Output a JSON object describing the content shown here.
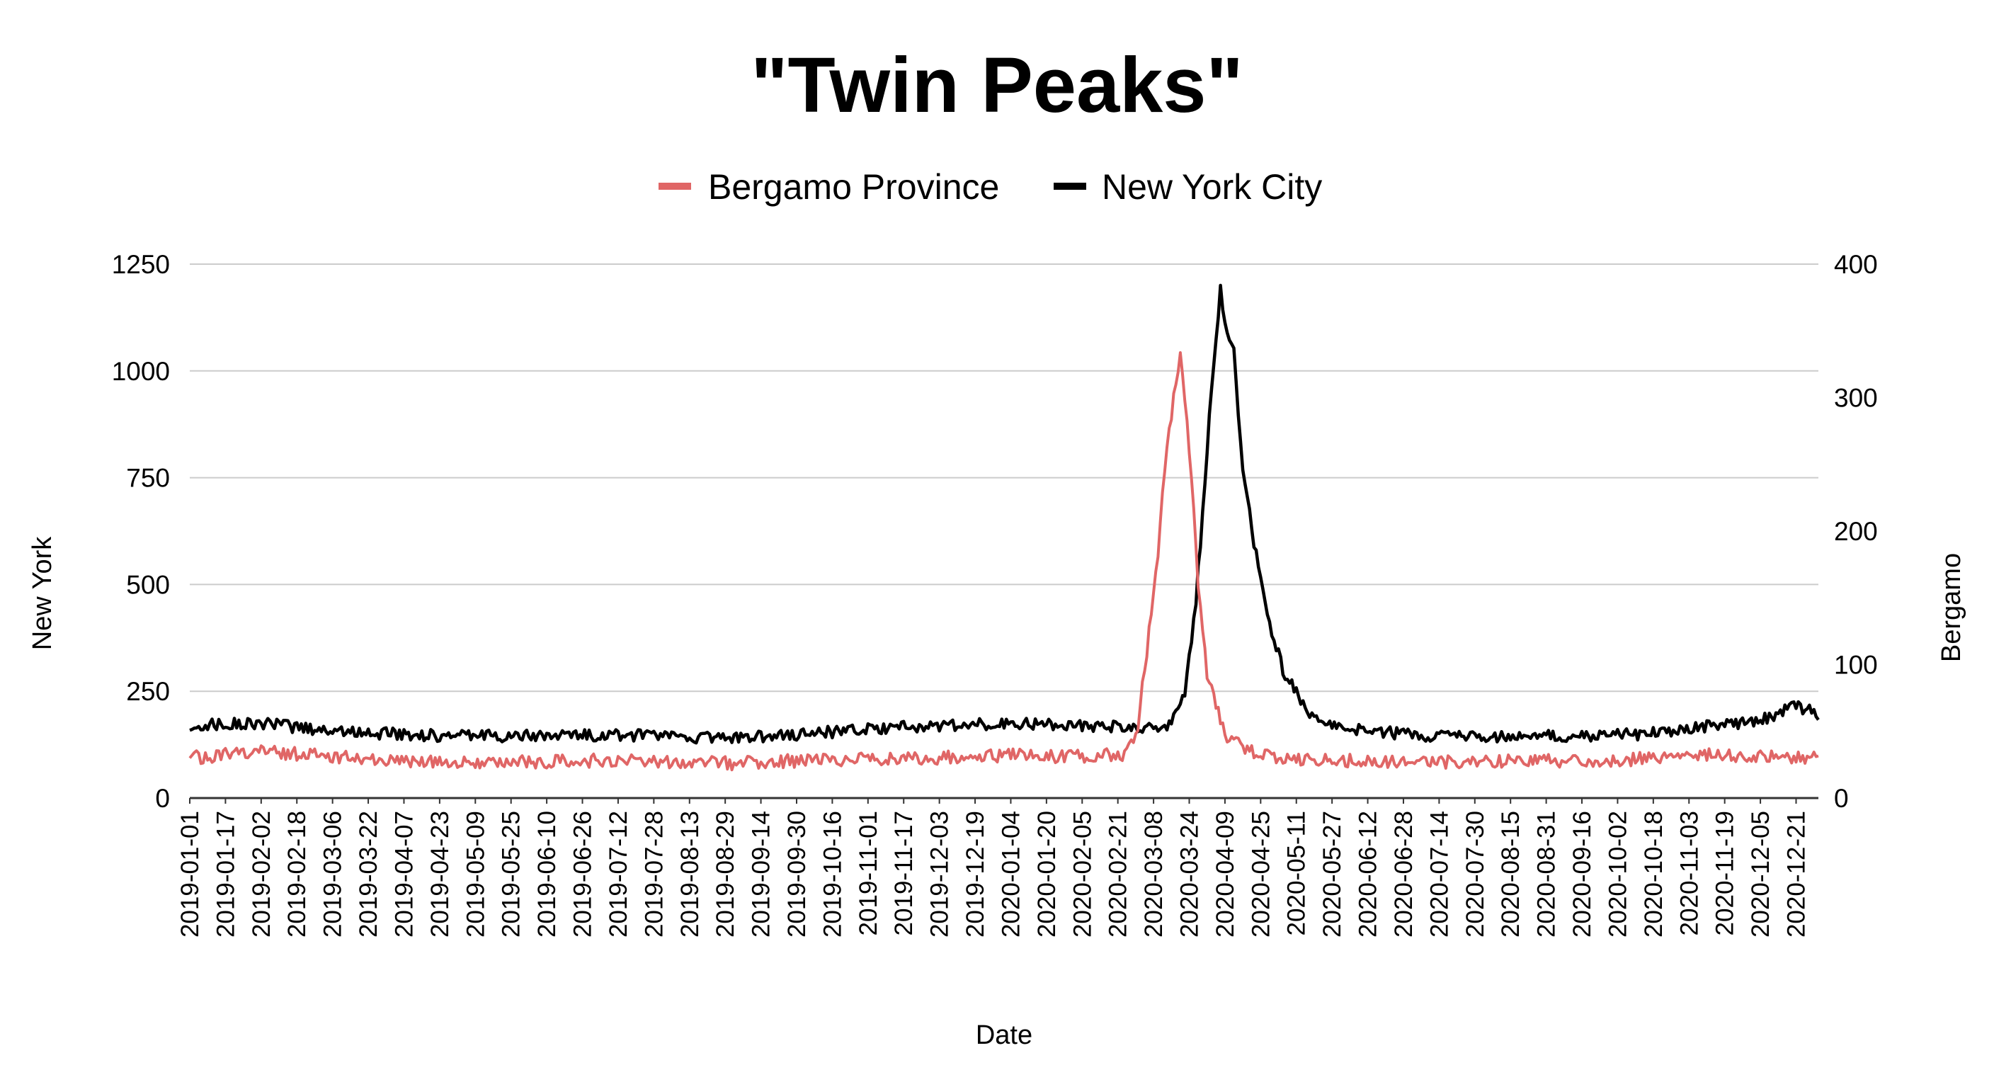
{
  "chart_data": {
    "type": "line",
    "title": "\"Twin Peaks\"",
    "xlabel": "Date",
    "ylabel_left": "New York",
    "ylabel_right": "Bergamo",
    "legend_position": "top-center",
    "grid": true,
    "y_left": {
      "min": 0,
      "max": 1250,
      "ticks": [
        "0",
        "250",
        "500",
        "750",
        "1000",
        "1250"
      ]
    },
    "y_right": {
      "min": 0,
      "max": 400,
      "ticks": [
        "0",
        "100",
        "200",
        "300",
        "400"
      ]
    },
    "x_range": [
      "2019-01-01",
      "2020-12-31"
    ],
    "x_tick_labels": [
      "2019-01-01",
      "2019-01-17",
      "2019-02-02",
      "2019-02-18",
      "2019-03-06",
      "2019-03-22",
      "2019-04-07",
      "2019-04-23",
      "2019-05-09",
      "2019-05-25",
      "2019-06-10",
      "2019-06-26",
      "2019-07-12",
      "2019-07-28",
      "2019-08-13",
      "2019-08-29",
      "2019-09-14",
      "2019-09-30",
      "2019-10-16",
      "2019-11-01",
      "2019-11-17",
      "2019-12-03",
      "2019-12-19",
      "2020-01-04",
      "2020-01-20",
      "2020-02-05",
      "2020-02-21",
      "2020-03-08",
      "2020-03-24",
      "2020-04-09",
      "2020-04-25",
      "2020-05-11",
      "2020-05-27",
      "2020-06-12",
      "2020-06-28",
      "2020-07-14",
      "2020-07-30",
      "2020-08-15",
      "2020-08-31",
      "2020-09-16",
      "2020-10-02",
      "2020-10-18",
      "2020-11-03",
      "2020-11-19",
      "2020-12-05",
      "2020-12-21"
    ],
    "series": [
      {
        "name": "Bergamo Province",
        "axis": "right",
        "color": "#e06666",
        "note_points": "approximate keypoints read off chart; daily noise omitted",
        "points": [
          [
            "2019-01-01",
            30
          ],
          [
            "2019-02-01",
            35
          ],
          [
            "2019-03-01",
            32
          ],
          [
            "2019-04-01",
            28
          ],
          [
            "2019-05-01",
            26
          ],
          [
            "2019-06-01",
            27
          ],
          [
            "2019-07-01",
            28
          ],
          [
            "2019-08-01",
            27
          ],
          [
            "2019-09-01",
            26
          ],
          [
            "2019-10-01",
            28
          ],
          [
            "2019-11-01",
            29
          ],
          [
            "2019-12-01",
            30
          ],
          [
            "2020-01-01",
            32
          ],
          [
            "2020-02-01",
            31
          ],
          [
            "2020-02-25",
            33
          ],
          [
            "2020-03-01",
            55
          ],
          [
            "2020-03-05",
            110
          ],
          [
            "2020-03-10",
            185
          ],
          [
            "2020-03-13",
            245
          ],
          [
            "2020-03-17",
            300
          ],
          [
            "2020-03-20",
            330
          ],
          [
            "2020-03-22",
            300
          ],
          [
            "2020-03-25",
            240
          ],
          [
            "2020-03-28",
            160
          ],
          [
            "2020-04-01",
            90
          ],
          [
            "2020-04-05",
            70
          ],
          [
            "2020-04-10",
            45
          ],
          [
            "2020-04-20",
            35
          ],
          [
            "2020-05-01",
            30
          ],
          [
            "2020-06-01",
            28
          ],
          [
            "2020-07-01",
            27
          ],
          [
            "2020-08-01",
            27
          ],
          [
            "2020-09-01",
            28
          ],
          [
            "2020-10-01",
            28
          ],
          [
            "2020-11-01",
            32
          ],
          [
            "2020-12-01",
            32
          ],
          [
            "2020-12-31",
            30
          ]
        ]
      },
      {
        "name": "New York City",
        "axis": "left",
        "color": "#000000",
        "note_points": "approximate keypoints read off chart; daily noise omitted",
        "points": [
          [
            "2019-01-01",
            170
          ],
          [
            "2019-02-01",
            175
          ],
          [
            "2019-03-01",
            160
          ],
          [
            "2019-04-01",
            150
          ],
          [
            "2019-05-01",
            145
          ],
          [
            "2019-06-01",
            145
          ],
          [
            "2019-07-01",
            148
          ],
          [
            "2019-08-01",
            145
          ],
          [
            "2019-09-01",
            140
          ],
          [
            "2019-10-01",
            150
          ],
          [
            "2019-11-01",
            160
          ],
          [
            "2019-12-01",
            170
          ],
          [
            "2020-01-01",
            175
          ],
          [
            "2020-02-01",
            172
          ],
          [
            "2020-03-01",
            165
          ],
          [
            "2020-03-15",
            170
          ],
          [
            "2020-03-22",
            240
          ],
          [
            "2020-03-27",
            460
          ],
          [
            "2020-03-31",
            740
          ],
          [
            "2020-04-03",
            970
          ],
          [
            "2020-04-07",
            1190
          ],
          [
            "2020-04-10",
            1080
          ],
          [
            "2020-04-13",
            1040
          ],
          [
            "2020-04-17",
            760
          ],
          [
            "2020-04-22",
            600
          ],
          [
            "2020-04-28",
            430
          ],
          [
            "2020-05-05",
            300
          ],
          [
            "2020-05-15",
            210
          ],
          [
            "2020-05-25",
            170
          ],
          [
            "2020-06-15",
            155
          ],
          [
            "2020-07-15",
            145
          ],
          [
            "2020-08-15",
            145
          ],
          [
            "2020-09-15",
            145
          ],
          [
            "2020-10-15",
            150
          ],
          [
            "2020-11-15",
            170
          ],
          [
            "2020-12-01",
            175
          ],
          [
            "2020-12-15",
            200
          ],
          [
            "2020-12-20",
            220
          ],
          [
            "2020-12-31",
            195
          ]
        ]
      }
    ]
  }
}
